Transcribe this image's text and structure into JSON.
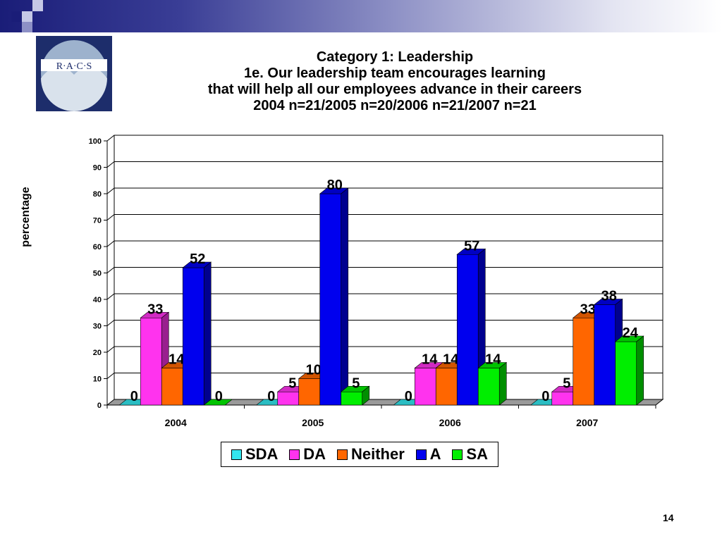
{
  "slide": {
    "logo_text": "R·A·C·S",
    "title_lines": [
      "Category 1: Leadership",
      "1e. Our leadership team encourages learning",
      "that will help all our employees advance in their careers",
      "2004 n=21/2005 n=20/2006 n=21/2007 n=21"
    ],
    "page_number": "14"
  },
  "chart_data": {
    "type": "bar",
    "style": "3d-clustered",
    "ylabel": "percentage",
    "ylim": [
      0,
      100
    ],
    "yticks": [
      0,
      10,
      20,
      30,
      40,
      50,
      60,
      70,
      80,
      90,
      100
    ],
    "grid": true,
    "legend_position": "bottom",
    "categories": [
      "2004",
      "2005",
      "2006",
      "2007"
    ],
    "series": [
      {
        "name": "SDA",
        "color": "#33e6ee",
        "values": [
          0,
          0,
          0,
          0
        ]
      },
      {
        "name": "DA",
        "color": "#ff33ee",
        "values": [
          33,
          5,
          14,
          5
        ]
      },
      {
        "name": "Neither",
        "color": "#ff6600",
        "values": [
          14,
          10,
          14,
          33
        ]
      },
      {
        "name": "A",
        "color": "#0000ee",
        "values": [
          52,
          80,
          57,
          38
        ]
      },
      {
        "name": "SA",
        "color": "#00ee00",
        "values": [
          0,
          5,
          14,
          24
        ]
      }
    ],
    "data_labels": [
      [
        "0",
        "0",
        "0",
        "0"
      ],
      [
        "33",
        "5",
        "14",
        "5"
      ],
      [
        "14",
        "10",
        "14",
        "33"
      ],
      [
        "52",
        "80",
        "57",
        "38"
      ],
      [
        "0",
        "5",
        "14",
        "24"
      ]
    ]
  }
}
